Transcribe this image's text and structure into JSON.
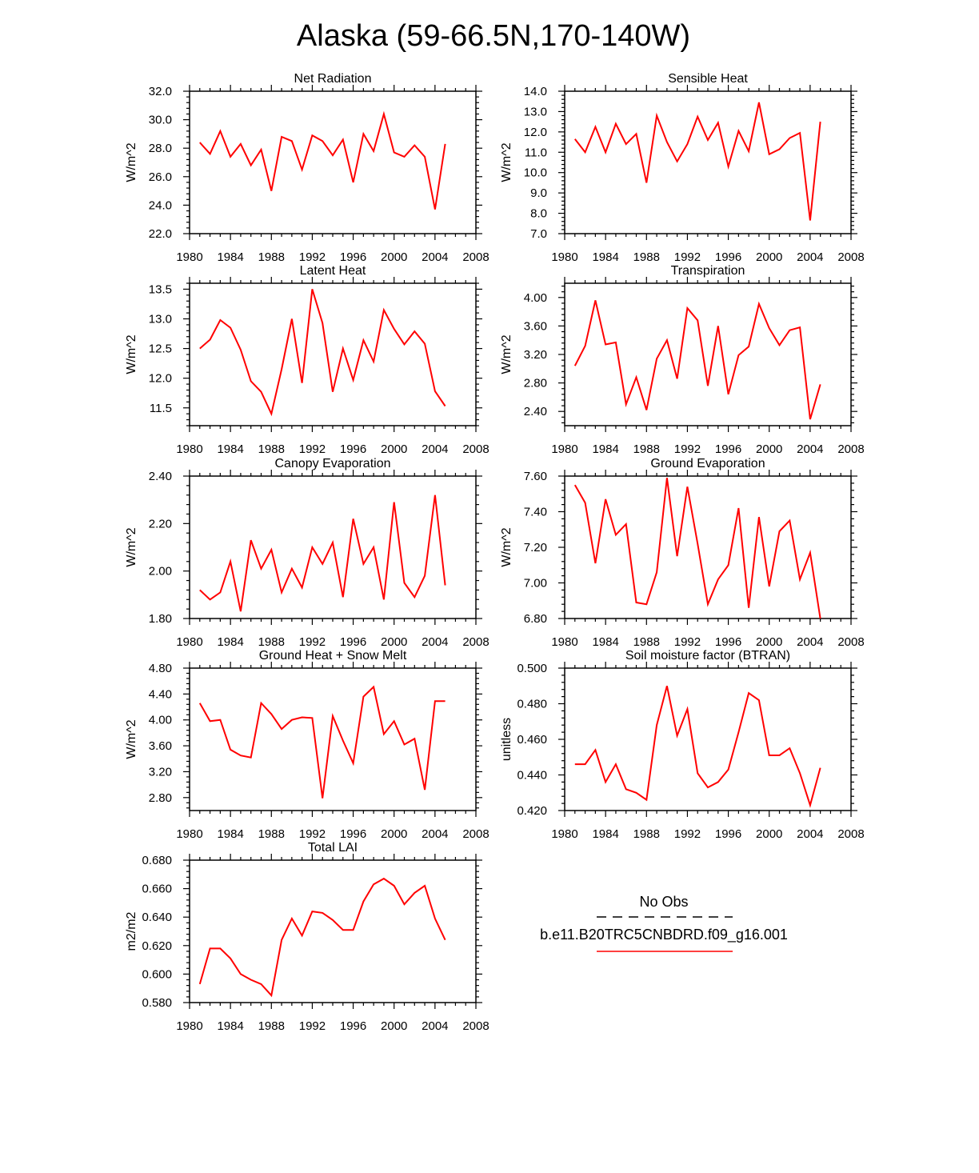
{
  "figure": {
    "title": "Alaska (59-66.5N,170-140W)",
    "legend": {
      "obs_label": "No Obs",
      "model_label": "b.e11.B20TRC5CNBDRD.f09_g16.001",
      "obs_color": "#000000",
      "model_color": "#ff0000"
    }
  },
  "chart_data": [
    {
      "type": "line",
      "title": "Net Radiation",
      "ylabel": "W/m^2",
      "xlim": [
        1980,
        2008
      ],
      "xticks": [
        1980,
        1984,
        1988,
        1992,
        1996,
        2000,
        2004,
        2008
      ],
      "ylim": [
        22.0,
        32.0
      ],
      "yticks": [
        22.0,
        24.0,
        26.0,
        28.0,
        30.0,
        32.0
      ],
      "ydecimals": 1,
      "x": [
        1981,
        1982,
        1983,
        1984,
        1985,
        1986,
        1987,
        1988,
        1989,
        1990,
        1991,
        1992,
        1993,
        1994,
        1995,
        1996,
        1997,
        1998,
        1999,
        2000,
        2001,
        2002,
        2003,
        2004,
        2005
      ],
      "series": [
        {
          "name": "b.e11.B20TRC5CNBDRD.f09_g16.001",
          "color": "#ff0000",
          "values": [
            28.4,
            27.6,
            29.2,
            27.4,
            28.3,
            26.8,
            27.9,
            25.0,
            28.8,
            28.5,
            26.5,
            28.9,
            28.5,
            27.5,
            28.6,
            25.6,
            29.0,
            27.8,
            30.4,
            27.7,
            27.4,
            28.2,
            27.4,
            23.7,
            28.3
          ]
        }
      ]
    },
    {
      "type": "line",
      "title": "Sensible Heat",
      "ylabel": "W/m^2",
      "xlim": [
        1980,
        2008
      ],
      "xticks": [
        1980,
        1984,
        1988,
        1992,
        1996,
        2000,
        2004,
        2008
      ],
      "ylim": [
        7.0,
        14.0
      ],
      "yticks": [
        7.0,
        8.0,
        9.0,
        10.0,
        11.0,
        12.0,
        13.0,
        14.0
      ],
      "ydecimals": 1,
      "x": [
        1981,
        1982,
        1983,
        1984,
        1985,
        1986,
        1987,
        1988,
        1989,
        1990,
        1991,
        1992,
        1993,
        1994,
        1995,
        1996,
        1997,
        1998,
        1999,
        2000,
        2001,
        2002,
        2003,
        2004,
        2005
      ],
      "series": [
        {
          "name": "b.e11.B20TRC5CNBDRD.f09_g16.001",
          "color": "#ff0000",
          "values": [
            11.65,
            11.0,
            12.25,
            11.0,
            12.4,
            11.4,
            11.9,
            9.5,
            12.8,
            11.5,
            10.55,
            11.4,
            12.75,
            11.6,
            12.45,
            10.3,
            12.05,
            11.05,
            13.45,
            10.9,
            11.15,
            11.7,
            11.95,
            7.65,
            12.5
          ]
        }
      ]
    },
    {
      "type": "line",
      "title": "Latent Heat",
      "ylabel": "W/m^2",
      "xlim": [
        1980,
        2008
      ],
      "xticks": [
        1980,
        1984,
        1988,
        1992,
        1996,
        2000,
        2004,
        2008
      ],
      "ylim": [
        11.2,
        13.6
      ],
      "yticks": [
        11.5,
        12.0,
        12.5,
        13.0,
        13.5
      ],
      "ydecimals": 1,
      "x": [
        1981,
        1982,
        1983,
        1984,
        1985,
        1986,
        1987,
        1988,
        1989,
        1990,
        1991,
        1992,
        1993,
        1994,
        1995,
        1996,
        1997,
        1998,
        1999,
        2000,
        2001,
        2002,
        2003,
        2004,
        2005
      ],
      "series": [
        {
          "name": "b.e11.B20TRC5CNBDRD.f09_g16.001",
          "color": "#ff0000",
          "values": [
            12.5,
            12.65,
            12.98,
            12.85,
            12.48,
            11.95,
            11.77,
            11.4,
            12.15,
            13.0,
            11.92,
            13.5,
            12.93,
            11.77,
            12.5,
            11.97,
            12.64,
            12.28,
            13.15,
            12.83,
            12.57,
            12.79,
            12.58,
            11.78,
            11.53
          ]
        }
      ]
    },
    {
      "type": "line",
      "title": "Transpiration",
      "ylabel": "W/m^2",
      "xlim": [
        1980,
        2008
      ],
      "xticks": [
        1980,
        1984,
        1988,
        1992,
        1996,
        2000,
        2004,
        2008
      ],
      "ylim": [
        2.2,
        4.2
      ],
      "yticks": [
        2.4,
        2.8,
        3.2,
        3.6,
        4.0
      ],
      "ydecimals": 2,
      "x": [
        1981,
        1982,
        1983,
        1984,
        1985,
        1986,
        1987,
        1988,
        1989,
        1990,
        1991,
        1992,
        1993,
        1994,
        1995,
        1996,
        1997,
        1998,
        1999,
        2000,
        2001,
        2002,
        2003,
        2004,
        2005
      ],
      "series": [
        {
          "name": "b.e11.B20TRC5CNBDRD.f09_g16.001",
          "color": "#ff0000",
          "values": [
            3.04,
            3.32,
            3.96,
            3.34,
            3.37,
            2.5,
            2.88,
            2.42,
            3.14,
            3.4,
            2.86,
            3.85,
            3.68,
            2.76,
            3.6,
            2.64,
            3.19,
            3.31,
            3.91,
            3.57,
            3.33,
            3.54,
            3.58,
            2.29,
            2.78
          ]
        }
      ]
    },
    {
      "type": "line",
      "title": "Canopy Evaporation",
      "ylabel": "W/m^2",
      "xlim": [
        1980,
        2008
      ],
      "xticks": [
        1980,
        1984,
        1988,
        1992,
        1996,
        2000,
        2004,
        2008
      ],
      "ylim": [
        1.8,
        2.4
      ],
      "yticks": [
        1.8,
        2.0,
        2.2,
        2.4
      ],
      "ydecimals": 2,
      "x": [
        1981,
        1982,
        1983,
        1984,
        1985,
        1986,
        1987,
        1988,
        1989,
        1990,
        1991,
        1992,
        1993,
        1994,
        1995,
        1996,
        1997,
        1998,
        1999,
        2000,
        2001,
        2002,
        2003,
        2004,
        2005
      ],
      "series": [
        {
          "name": "b.e11.B20TRC5CNBDRD.f09_g16.001",
          "color": "#ff0000",
          "values": [
            1.92,
            1.88,
            1.91,
            2.04,
            1.83,
            2.13,
            2.01,
            2.09,
            1.91,
            2.01,
            1.93,
            2.1,
            2.03,
            2.12,
            1.89,
            2.22,
            2.03,
            2.1,
            1.88,
            2.29,
            1.95,
            1.89,
            1.98,
            2.32,
            1.94
          ]
        }
      ]
    },
    {
      "type": "line",
      "title": "Ground Evaporation",
      "ylabel": "W/m^2",
      "xlim": [
        1980,
        2008
      ],
      "xticks": [
        1980,
        1984,
        1988,
        1992,
        1996,
        2000,
        2004,
        2008
      ],
      "ylim": [
        6.8,
        7.6
      ],
      "yticks": [
        6.8,
        7.0,
        7.2,
        7.4,
        7.6
      ],
      "ydecimals": 2,
      "x": [
        1981,
        1982,
        1983,
        1984,
        1985,
        1986,
        1987,
        1988,
        1989,
        1990,
        1991,
        1992,
        1993,
        1994,
        1995,
        1996,
        1997,
        1998,
        1999,
        2000,
        2001,
        2002,
        2003,
        2004,
        2005
      ],
      "series": [
        {
          "name": "b.e11.B20TRC5CNBDRD.f09_g16.001",
          "color": "#ff0000",
          "values": [
            7.55,
            7.45,
            7.11,
            7.47,
            7.27,
            7.33,
            6.89,
            6.88,
            7.06,
            7.59,
            7.15,
            7.54,
            7.22,
            6.88,
            7.02,
            7.1,
            7.42,
            6.86,
            7.37,
            6.98,
            7.29,
            7.35,
            7.02,
            7.17,
            6.8
          ]
        }
      ]
    },
    {
      "type": "line",
      "title": "Ground Heat + Snow Melt",
      "ylabel": "W/m^2",
      "xlim": [
        1980,
        2008
      ],
      "xticks": [
        1980,
        1984,
        1988,
        1992,
        1996,
        2000,
        2004,
        2008
      ],
      "ylim": [
        2.6,
        4.8
      ],
      "yticks": [
        2.8,
        3.2,
        3.6,
        4.0,
        4.4,
        4.8
      ],
      "ydecimals": 2,
      "x": [
        1981,
        1982,
        1983,
        1984,
        1985,
        1986,
        1987,
        1988,
        1989,
        1990,
        1991,
        1992,
        1993,
        1994,
        1995,
        1996,
        1997,
        1998,
        1999,
        2000,
        2001,
        2002,
        2003,
        2004,
        2005
      ],
      "series": [
        {
          "name": "b.e11.B20TRC5CNBDRD.f09_g16.001",
          "color": "#ff0000",
          "values": [
            4.26,
            3.98,
            4.0,
            3.54,
            3.45,
            3.42,
            4.26,
            4.09,
            3.86,
            4.0,
            4.04,
            4.03,
            2.79,
            4.06,
            3.68,
            3.33,
            4.36,
            4.51,
            3.78,
            3.98,
            3.62,
            3.71,
            2.92,
            4.29,
            4.29
          ]
        }
      ]
    },
    {
      "type": "line",
      "title": "Soil moisture factor (BTRAN)",
      "ylabel": "unitless",
      "xlim": [
        1980,
        2008
      ],
      "xticks": [
        1980,
        1984,
        1988,
        1992,
        1996,
        2000,
        2004,
        2008
      ],
      "ylim": [
        0.42,
        0.5
      ],
      "yticks": [
        0.42,
        0.44,
        0.46,
        0.48,
        0.5
      ],
      "ydecimals": 3,
      "x": [
        1981,
        1982,
        1983,
        1984,
        1985,
        1986,
        1987,
        1988,
        1989,
        1990,
        1991,
        1992,
        1993,
        1994,
        1995,
        1996,
        1997,
        1998,
        1999,
        2000,
        2001,
        2002,
        2003,
        2004,
        2005
      ],
      "series": [
        {
          "name": "b.e11.B20TRC5CNBDRD.f09_g16.001",
          "color": "#ff0000",
          "values": [
            0.446,
            0.446,
            0.454,
            0.436,
            0.446,
            0.432,
            0.43,
            0.426,
            0.468,
            0.49,
            0.462,
            0.477,
            0.441,
            0.433,
            0.436,
            0.443,
            0.464,
            0.486,
            0.482,
            0.451,
            0.451,
            0.455,
            0.441,
            0.423,
            0.444
          ]
        }
      ]
    },
    {
      "type": "line",
      "title": "Total LAI",
      "ylabel": "m2/m2",
      "xlim": [
        1980,
        2008
      ],
      "xticks": [
        1980,
        1984,
        1988,
        1992,
        1996,
        2000,
        2004,
        2008
      ],
      "ylim": [
        0.58,
        0.68
      ],
      "yticks": [
        0.58,
        0.6,
        0.62,
        0.64,
        0.66,
        0.68
      ],
      "ydecimals": 3,
      "x": [
        1981,
        1982,
        1983,
        1984,
        1985,
        1986,
        1987,
        1988,
        1989,
        1990,
        1991,
        1992,
        1993,
        1994,
        1995,
        1996,
        1997,
        1998,
        1999,
        2000,
        2001,
        2002,
        2003,
        2004,
        2005
      ],
      "series": [
        {
          "name": "b.e11.B20TRC5CNBDRD.f09_g16.001",
          "color": "#ff0000",
          "values": [
            0.593,
            0.618,
            0.618,
            0.611,
            0.6,
            0.596,
            0.593,
            0.585,
            0.624,
            0.639,
            0.627,
            0.644,
            0.643,
            0.638,
            0.631,
            0.631,
            0.651,
            0.663,
            0.667,
            0.662,
            0.649,
            0.657,
            0.662,
            0.639,
            0.624
          ]
        }
      ]
    }
  ]
}
